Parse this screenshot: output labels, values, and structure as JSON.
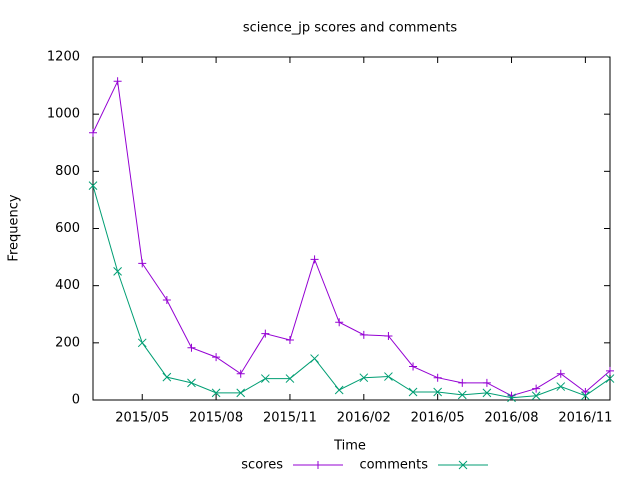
{
  "chart_data": {
    "type": "line",
    "title": "science_jp scores and comments",
    "x_label": "Time",
    "y_label": "Frequency",
    "x": [
      "2015/03",
      "2015/04",
      "2015/05",
      "2015/06",
      "2015/07",
      "2015/08",
      "2015/09",
      "2015/10",
      "2015/11",
      "2015/12",
      "2016/01",
      "2016/02",
      "2016/03",
      "2016/04",
      "2016/05",
      "2016/06",
      "2016/07",
      "2016/08",
      "2016/09",
      "2016/10",
      "2016/11",
      "2016/12"
    ],
    "series": [
      {
        "name": "scores",
        "color": "#9400d3",
        "marker": "+",
        "values": [
          935,
          1115,
          478,
          350,
          183,
          150,
          92,
          232,
          210,
          492,
          272,
          228,
          224,
          117,
          78,
          60,
          60,
          15,
          40,
          92,
          28,
          102
        ]
      },
      {
        "name": "comments",
        "color": "#009e73",
        "marker": "x",
        "values": [
          750,
          450,
          200,
          80,
          60,
          25,
          25,
          75,
          75,
          145,
          35,
          78,
          82,
          28,
          28,
          18,
          25,
          8,
          15,
          47,
          15,
          75
        ]
      }
    ],
    "xlim": [
      "2015/03",
      "2016/12"
    ],
    "xticks": [
      "2015/05",
      "2015/08",
      "2015/11",
      "2016/02",
      "2016/05",
      "2016/08",
      "2016/11"
    ],
    "ylim": [
      0,
      1200
    ],
    "yticks": [
      0,
      200,
      400,
      600,
      800,
      1000,
      1200
    ],
    "legend": "bottom"
  }
}
